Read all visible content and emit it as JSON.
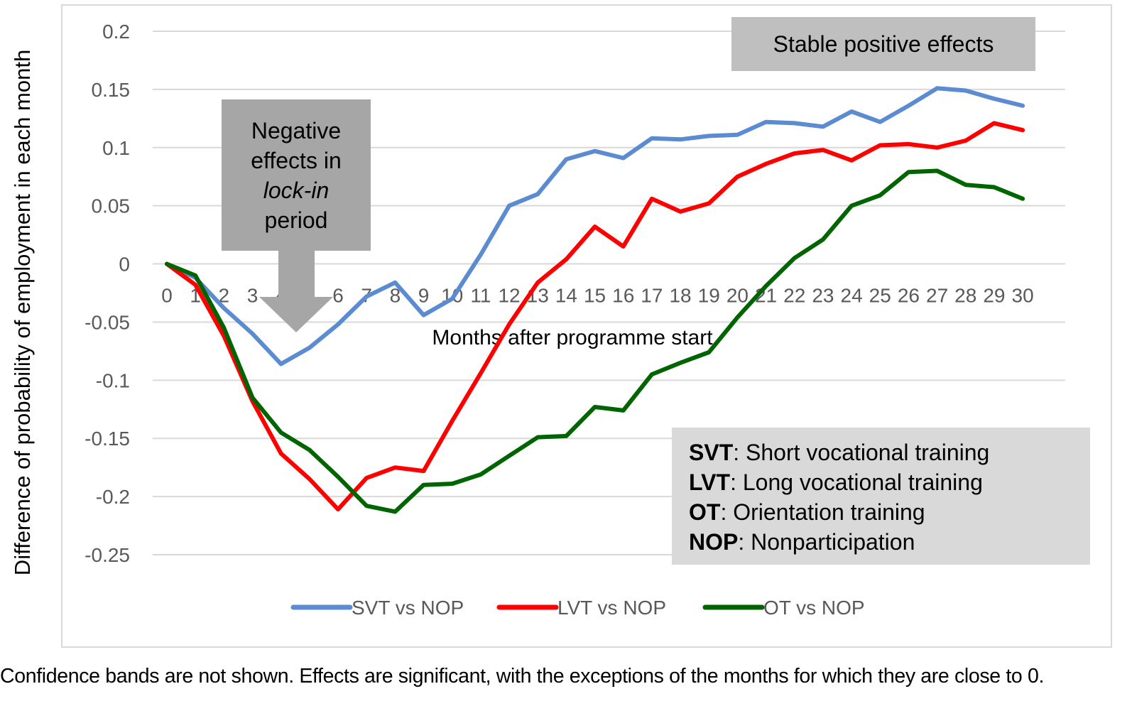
{
  "chart_data": {
    "type": "line",
    "title": "",
    "ylabel": "Difference of probability of employment in each month",
    "xlabel": "Months after programme start",
    "ylim": [
      -0.25,
      0.2
    ],
    "y_ticks": [
      "0.2",
      "0.15",
      "0.1",
      "0.05",
      "0",
      "-0.05",
      "-0.1",
      "-0.15",
      "-0.2",
      "-0.25"
    ],
    "y_tick_values": [
      0.2,
      0.15,
      0.1,
      0.05,
      0,
      -0.05,
      -0.1,
      -0.15,
      -0.2,
      -0.25
    ],
    "x": [
      0,
      1,
      2,
      3,
      4,
      5,
      6,
      7,
      8,
      9,
      10,
      11,
      12,
      13,
      14,
      15,
      16,
      17,
      18,
      19,
      20,
      21,
      22,
      23,
      24,
      25,
      26,
      27,
      28,
      29,
      30
    ],
    "x_tick_labels": [
      "0",
      "1",
      "2",
      "3",
      "4",
      "5",
      "6",
      "7",
      "8",
      "9",
      "10",
      "11",
      "12",
      "13",
      "14",
      "15",
      "16",
      "17",
      "18",
      "19",
      "20",
      "21",
      "22",
      "23",
      "24",
      "25",
      "26",
      "27",
      "28",
      "29",
      "30"
    ],
    "grid": true,
    "legend_position": "bottom",
    "series": [
      {
        "name": "SVT vs NOP",
        "color": "#5b8bd0",
        "values": [
          0,
          -0.012,
          -0.038,
          -0.06,
          -0.086,
          -0.072,
          -0.052,
          -0.028,
          -0.016,
          -0.044,
          -0.03,
          0.008,
          0.05,
          0.06,
          0.09,
          0.097,
          0.091,
          0.108,
          0.107,
          0.11,
          0.111,
          0.122,
          0.121,
          0.118,
          0.131,
          0.122,
          0.136,
          0.151,
          0.149,
          0.142,
          0.136
        ]
      },
      {
        "name": "LVT vs NOP",
        "color": "#ff0000",
        "values": [
          0,
          -0.018,
          -0.062,
          -0.118,
          -0.163,
          -0.185,
          -0.211,
          -0.184,
          -0.175,
          -0.178,
          -0.135,
          -0.094,
          -0.052,
          -0.016,
          0.004,
          0.032,
          0.015,
          0.056,
          0.045,
          0.052,
          0.075,
          0.086,
          0.095,
          0.098,
          0.089,
          0.102,
          0.103,
          0.1,
          0.106,
          0.121,
          0.115
        ]
      },
      {
        "name": "OT vs NOP",
        "color": "#006400",
        "values": [
          0,
          -0.01,
          -0.055,
          -0.115,
          -0.145,
          -0.16,
          -0.183,
          -0.208,
          -0.213,
          -0.19,
          -0.189,
          -0.181,
          -0.165,
          -0.149,
          -0.148,
          -0.123,
          -0.126,
          -0.095,
          -0.085,
          -0.076,
          -0.046,
          -0.019,
          0.005,
          0.021,
          0.05,
          0.059,
          0.079,
          0.08,
          0.068,
          0.066,
          0.056
        ]
      }
    ],
    "annotations": {
      "negative": {
        "line1": "Negative",
        "line2": "effects in",
        "line3": "lock-in",
        "line4": "period",
        "fill": "#a6a6a6"
      },
      "stable": {
        "text": "Stable positive effects",
        "fill": "#bfbfbf"
      },
      "abbreviations": [
        {
          "abbr": "SVT",
          "desc": ": Short vocational training"
        },
        {
          "abbr": "LVT",
          "desc": ": Long vocational training"
        },
        {
          "abbr": "OT",
          "desc": ": Orientation training"
        },
        {
          "abbr": "NOP",
          "desc": ": Nonparticipation"
        }
      ]
    }
  },
  "footnote": "Confidence bands are not shown. Effects are significant, with the exceptions of the months for which they are close to 0."
}
